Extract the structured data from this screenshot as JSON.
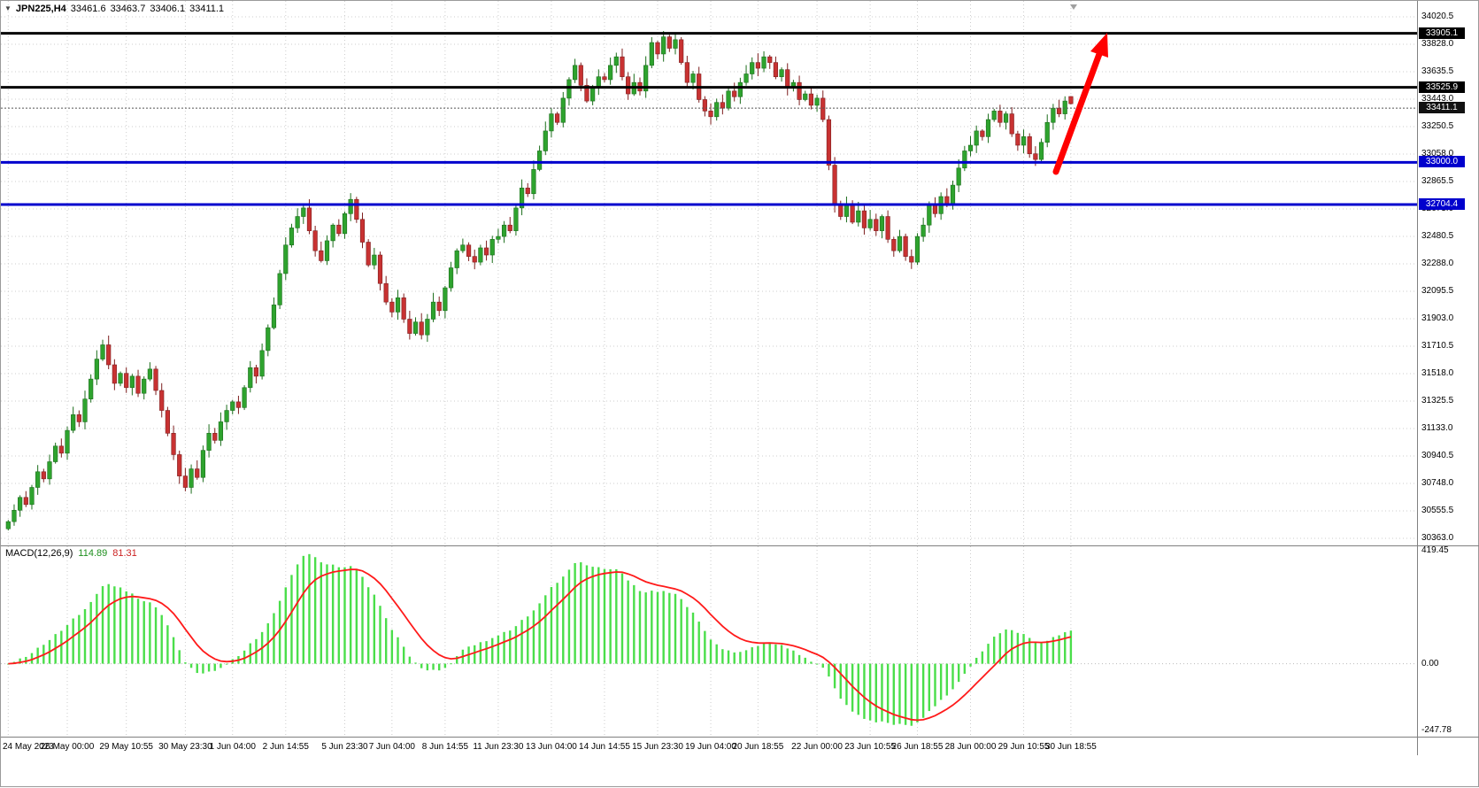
{
  "header": {
    "symbol": "JPN225,H4",
    "open": "33461.6",
    "high": "33463.7",
    "low": "33406.1",
    "close": "33411.1"
  },
  "chart_data": {
    "type": "candlestick",
    "title": "JPN225 H4 candlestick chart with MACD",
    "symbol": "JPN225",
    "timeframe": "H4",
    "ohlc_display": {
      "open": 33461.6,
      "high": 33463.7,
      "low": 33406.1,
      "close": 33411.1
    },
    "y_ticks": [
      34020.5,
      33828.0,
      33635.5,
      33443.0,
      33250.5,
      33058.0,
      32865.5,
      32673.0,
      32480.5,
      32288.0,
      32095.5,
      31903.0,
      31710.5,
      31518.0,
      31325.5,
      31133.0,
      30940.5,
      30748.0,
      30555.5,
      30363.0
    ],
    "x_labels": [
      "24 May 2023",
      "26 May 00:00",
      "29 May 10:55",
      "30 May 23:30",
      "1 Jun 04:00",
      "2 Jun 14:55",
      "5 Jun 23:30",
      "7 Jun 04:00",
      "8 Jun 14:55",
      "11 Jun 23:30",
      "13 Jun 04:00",
      "14 Jun 14:55",
      "15 Jun 23:30",
      "19 Jun 04:00",
      "20 Jun 18:55",
      "22 Jun 00:00",
      "23 Jun 10:55",
      "26 Jun 18:55",
      "28 Jun 00:00",
      "29 Jun 10:55",
      "30 Jun 18:55"
    ],
    "x_label_indices": [
      0,
      10,
      20,
      30,
      38,
      47,
      57,
      65,
      74,
      83,
      92,
      101,
      110,
      119,
      127,
      137,
      146,
      154,
      163,
      172,
      180
    ],
    "closes": [
      30480,
      30560,
      30650,
      30600,
      30720,
      30830,
      30780,
      30900,
      31010,
      30960,
      31120,
      31230,
      31180,
      31340,
      31480,
      31620,
      31720,
      31580,
      31450,
      31520,
      31420,
      31500,
      31380,
      31480,
      31550,
      31400,
      31260,
      31100,
      30950,
      30800,
      30720,
      30850,
      30790,
      30980,
      31100,
      31050,
      31180,
      31260,
      31320,
      31280,
      31420,
      31560,
      31500,
      31680,
      31840,
      32000,
      32220,
      32420,
      32540,
      32620,
      32680,
      32520,
      32380,
      32310,
      32450,
      32560,
      32500,
      32640,
      32740,
      32600,
      32440,
      32280,
      32350,
      32150,
      32020,
      31950,
      32050,
      31900,
      31800,
      31880,
      31790,
      31900,
      32020,
      31960,
      32120,
      32260,
      32380,
      32420,
      32340,
      32300,
      32400,
      32350,
      32460,
      32480,
      32560,
      32520,
      32680,
      32820,
      32780,
      32950,
      33080,
      33220,
      33340,
      33280,
      33450,
      33580,
      33680,
      33540,
      33430,
      33520,
      33600,
      33580,
      33680,
      33740,
      33600,
      33480,
      33560,
      33500,
      33680,
      33840,
      33760,
      33880,
      33800,
      33860,
      33700,
      33560,
      33620,
      33440,
      33360,
      33320,
      33420,
      33380,
      33500,
      33460,
      33560,
      33620,
      33700,
      33660,
      33740,
      33700,
      33600,
      33650,
      33520,
      33560,
      33440,
      33480,
      33400,
      33450,
      33300,
      32980,
      32700,
      32620,
      32700,
      32580,
      32660,
      32540,
      32600,
      32520,
      32620,
      32460,
      32380,
      32480,
      32340,
      32300,
      32480,
      32560,
      32700,
      32640,
      32760,
      32700,
      32840,
      32960,
      33080,
      33120,
      33220,
      33180,
      33300,
      33360,
      33280,
      33340,
      33200,
      33120,
      33180,
      33060,
      33020,
      33140,
      33280,
      33380,
      33340,
      33430,
      33411.1
    ],
    "price_lines": [
      {
        "price": 33905.1,
        "label": "33905.1",
        "color": "#000000"
      },
      {
        "price": 33525.9,
        "label": "33525.9",
        "color": "#000000"
      },
      {
        "price": 33000.0,
        "label": "33000.0",
        "color": "#0000CD"
      },
      {
        "price": 32704.4,
        "label": "32704.4",
        "color": "#0000CD"
      }
    ],
    "current_price": {
      "value": 33411.1,
      "label": "33411.1"
    },
    "annotation_arrow": {
      "color": "#FF0000",
      "from_price": 33000,
      "to_price": 33905
    },
    "macd": {
      "label": "MACD(12,26,9)",
      "main_value": "114.89",
      "signal_value": "81.31",
      "params": [
        12,
        26,
        9
      ],
      "y_ticks": [
        419.45,
        0.0,
        -247.78
      ]
    },
    "colors": {
      "grid": "#cdcdcd",
      "bull": "#2EA32E",
      "bull_border": "#1c6e1c",
      "bear": "#C83232",
      "bear_border": "#7e1f1f",
      "macd_hist": "#4ADE4A",
      "macd_signal": "#FF1a1a",
      "badge_current_bg": "#111111",
      "arrow": "#FF0000",
      "separator": "#808080"
    }
  }
}
